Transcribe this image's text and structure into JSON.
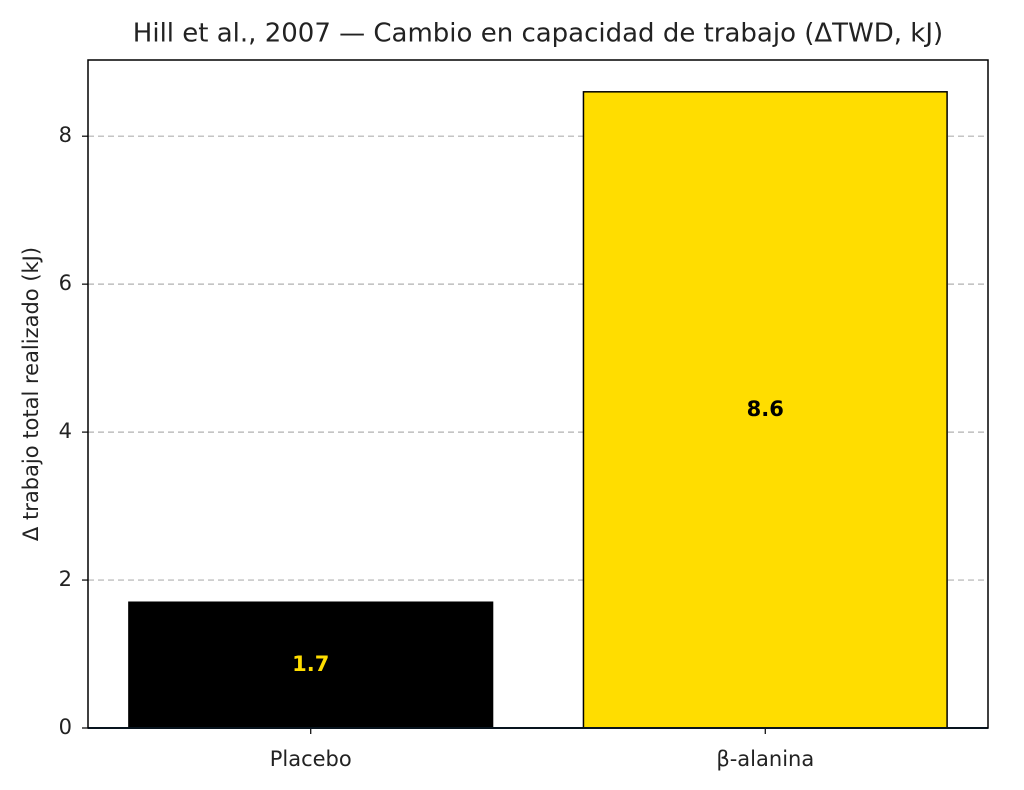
{
  "chart_data": {
    "type": "bar",
    "title": "Hill et al., 2007 — Cambio en capacidad de trabajo (ΔTWD, kJ)",
    "y_label": "Δ trabajo total realizado (kJ)",
    "categories": [
      "Placebo",
      "β-alanina"
    ],
    "values": [
      1.7,
      8.6
    ],
    "colors": [
      "#000000",
      "#ffdd00"
    ],
    "label_colors": [
      "#ffdd00",
      "#000000"
    ],
    "edge_color": "#000000",
    "baseline_color": "#1f4e79",
    "ylim": [
      0,
      9.03
    ],
    "yticks": [
      0,
      2,
      4,
      6,
      8
    ],
    "grid": true
  }
}
